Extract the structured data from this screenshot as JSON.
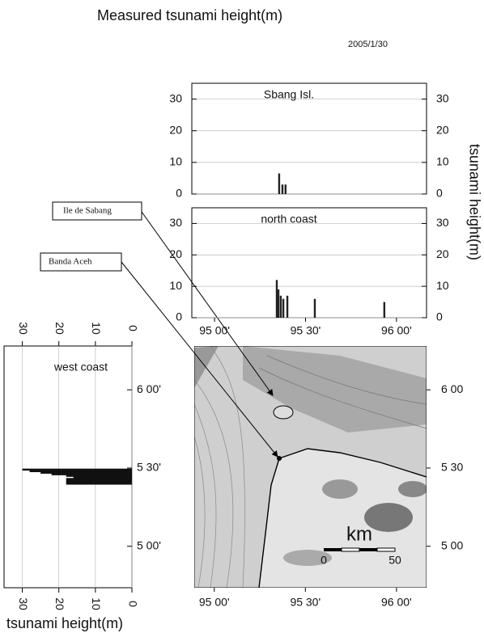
{
  "title": "Measured tsunami height(m)",
  "date": "2005/1/30",
  "annotations": [
    "Ile de Sabang",
    "Banda Aceh"
  ],
  "chart_data": [
    {
      "type": "bar",
      "title": "Sbang Isl.",
      "x": [
        95.355,
        95.373,
        95.39
      ],
      "values": [
        6.5,
        3,
        3
      ],
      "color": "#222222",
      "xlim": [
        94.875,
        96.165
      ],
      "ylim": [
        0,
        35
      ],
      "yticks": [
        0,
        10,
        20,
        30
      ],
      "grid": true
    },
    {
      "type": "bar",
      "title": "north coast",
      "y_label": "tsunami height(m)",
      "x": [
        95.342,
        95.351,
        95.364,
        95.378,
        95.4,
        95.551,
        95.933
      ],
      "values": [
        12,
        9,
        7,
        6,
        7,
        6,
        5
      ],
      "color": "#222222",
      "xlim": [
        94.875,
        96.165
      ],
      "ylim": [
        0,
        35
      ],
      "yticks": [
        0,
        10,
        20,
        30
      ],
      "xticks": [
        {
          "value": 95,
          "label": "95 00'"
        },
        {
          "value": 95.5,
          "label": "95 30'"
        },
        {
          "value": 96,
          "label": "96 00'"
        }
      ],
      "grid": true
    },
    {
      "type": "barh",
      "title": "west coast",
      "x_label": "tsunami height(m)",
      "y": [
        5.49,
        5.48,
        5.47,
        5.46,
        5.45,
        5.44,
        5.43,
        5.42,
        5.41,
        5.4
      ],
      "values": [
        30,
        28,
        25,
        22,
        18,
        16,
        18,
        18,
        18,
        18
      ],
      "color": "#111111",
      "xlim": [
        35,
        0
      ],
      "xticks": [
        0,
        10,
        20,
        30
      ],
      "ylim": [
        4.735,
        6.28
      ],
      "yticks": [
        {
          "value": 6,
          "label": "6 00'"
        },
        {
          "value": 5.5,
          "label": "5 30'"
        },
        {
          "value": 5,
          "label": "5 00'"
        }
      ],
      "grid": true
    },
    {
      "type": "map",
      "xlim": [
        94.89,
        96.165
      ],
      "ylim": [
        4.735,
        6.28
      ],
      "xticks": [
        {
          "value": 95,
          "label": "95 00'"
        },
        {
          "value": 95.5,
          "label": "95 30'"
        },
        {
          "value": 96,
          "label": "96 00'"
        }
      ],
      "yticks": [
        {
          "value": 6,
          "label": "6 00"
        },
        {
          "value": 5.5,
          "label": "5 30"
        },
        {
          "value": 5,
          "label": "5 00"
        }
      ],
      "scale_bar": {
        "unit": "km",
        "start": "0",
        "end": "50"
      }
    }
  ]
}
